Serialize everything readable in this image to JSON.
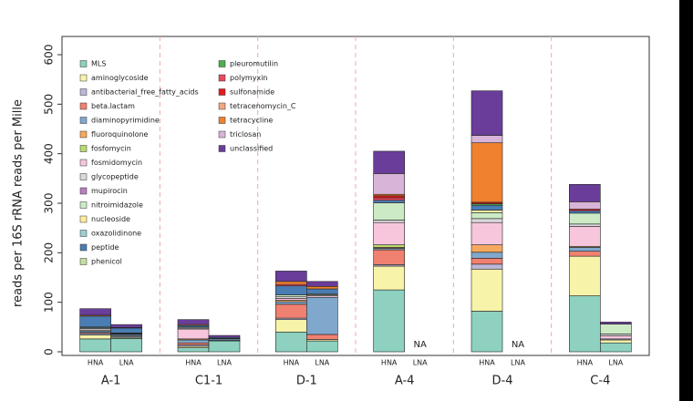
{
  "chart_data": {
    "type": "stacked_bar",
    "y_label": "reads per 16S rRNA reads per Mille",
    "ylim": [
      0,
      600
    ],
    "yticks": [
      0,
      100,
      200,
      300,
      400,
      500,
      600
    ],
    "groups": [
      "A-1",
      "C1-1",
      "D-1",
      "A-4",
      "D-4",
      "C-4"
    ],
    "categories": [
      "HNA",
      "LNA",
      "HNA",
      "LNA",
      "HNA",
      "LNA",
      "HNA",
      "LNA",
      "HNA",
      "LNA",
      "HNA",
      "LNA"
    ],
    "annotations": [
      {
        "text": "NA",
        "category": 7
      },
      {
        "text": "NA",
        "category": 9
      }
    ],
    "series": [
      {
        "name": "MLS",
        "color": "#8ed1c0",
        "values": [
          26,
          27,
          8,
          22,
          40,
          22,
          125,
          null,
          82,
          null,
          113,
          18
        ]
      },
      {
        "name": "aminoglycoside",
        "color": "#f7f3a8",
        "values": [
          8,
          2,
          3,
          1,
          25,
          3,
          48,
          null,
          85,
          null,
          80,
          6
        ]
      },
      {
        "name": "antibacterial_free_fatty_acids",
        "color": "#bdb6d9",
        "values": [
          3,
          2,
          3,
          0,
          3,
          0,
          3,
          null,
          10,
          null,
          0,
          2
        ]
      },
      {
        "name": "beta.lactam",
        "color": "#f08070",
        "values": [
          2,
          1,
          4,
          0,
          28,
          10,
          30,
          null,
          12,
          null,
          10,
          0
        ]
      },
      {
        "name": "diaminopyrimidine",
        "color": "#80a8cc",
        "values": [
          3,
          3,
          6,
          3,
          5,
          75,
          3,
          null,
          12,
          null,
          8,
          0
        ]
      },
      {
        "name": "fluoroquinolone",
        "color": "#f6a95e",
        "values": [
          0,
          0,
          2,
          0,
          3,
          0,
          2,
          null,
          15,
          null,
          2,
          0
        ]
      },
      {
        "name": "fosfomycin",
        "color": "#b8dc6e",
        "values": [
          0,
          0,
          0,
          0,
          0,
          0,
          5,
          null,
          0,
          null,
          0,
          0
        ]
      },
      {
        "name": "fosmidomycin",
        "color": "#f7c6dc",
        "values": [
          2,
          1,
          20,
          1,
          4,
          3,
          45,
          null,
          45,
          null,
          40,
          6
        ]
      },
      {
        "name": "glycopeptide",
        "color": "#d9d9d9",
        "values": [
          3,
          1,
          2,
          0,
          3,
          2,
          5,
          null,
          8,
          null,
          5,
          4
        ]
      },
      {
        "name": "mupirocin",
        "color": "#b97fbf",
        "values": [
          0,
          0,
          0,
          0,
          0,
          0,
          0,
          null,
          0,
          null,
          0,
          0
        ]
      },
      {
        "name": "nitroimidazole",
        "color": "#ccebc5",
        "values": [
          2,
          1,
          2,
          0,
          4,
          2,
          35,
          null,
          12,
          null,
          22,
          20
        ]
      },
      {
        "name": "nucleoside",
        "color": "#ffed9f",
        "values": [
          1,
          0,
          0,
          0,
          0,
          0,
          0,
          null,
          5,
          null,
          0,
          0
        ]
      },
      {
        "name": "oxazolidinone",
        "color": "#9ccfd0",
        "values": [
          0,
          0,
          0,
          0,
          0,
          0,
          0,
          null,
          0,
          null,
          0,
          0
        ]
      },
      {
        "name": "peptide",
        "color": "#4a7db3",
        "values": [
          22,
          10,
          3,
          2,
          18,
          10,
          5,
          null,
          10,
          null,
          5,
          0
        ]
      },
      {
        "name": "phenicol",
        "color": "#c4dca0",
        "values": [
          0,
          0,
          0,
          0,
          0,
          0,
          0,
          null,
          0,
          null,
          0,
          0
        ]
      },
      {
        "name": "pleuromutilin",
        "color": "#4daf4a",
        "values": [
          0,
          0,
          0,
          0,
          0,
          0,
          0,
          null,
          3,
          null,
          0,
          0
        ]
      },
      {
        "name": "polymyxin",
        "color": "#e84a5f",
        "values": [
          0,
          0,
          0,
          0,
          3,
          0,
          5,
          null,
          0,
          null,
          0,
          0
        ]
      },
      {
        "name": "sulfonamide",
        "color": "#e41a1c",
        "values": [
          0,
          0,
          0,
          0,
          0,
          0,
          4,
          null,
          3,
          null,
          3,
          0
        ]
      },
      {
        "name": "tetracenomycin_C",
        "color": "#f4a582",
        "values": [
          0,
          0,
          0,
          0,
          0,
          0,
          0,
          null,
          0,
          null,
          0,
          0
        ]
      },
      {
        "name": "tetracycline",
        "color": "#f0812e",
        "values": [
          2,
          1,
          2,
          0,
          6,
          5,
          3,
          null,
          120,
          null,
          0,
          0
        ]
      },
      {
        "name": "triclosan",
        "color": "#d8b4d8",
        "values": [
          0,
          0,
          0,
          0,
          0,
          0,
          42,
          null,
          15,
          null,
          15,
          0
        ]
      },
      {
        "name": "unclassified",
        "color": "#6a3d9a",
        "values": [
          13,
          6,
          10,
          4,
          21,
          10,
          45,
          null,
          90,
          null,
          35,
          4
        ]
      }
    ]
  }
}
